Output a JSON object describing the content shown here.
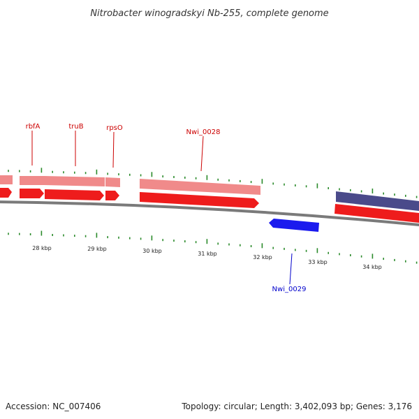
{
  "header": {
    "title": "Nitrobacter winogradskyi Nb-255, complete genome"
  },
  "footer": {
    "accession": "Accession: NC_007406",
    "summary": "Topology: circular; Length: 3,402,093 bp; Genes: 3,176"
  },
  "colors": {
    "backbone": "#7a7a7a",
    "cds_forward": "#ee1c1c",
    "gene_forward": "#f08a8a",
    "cds_reverse": "#1a1aee",
    "gene_reverse": "#4a4a8a",
    "ticks": "#2a8a2a",
    "label_forward": "#cc0000",
    "label_reverse": "#0000cc"
  },
  "gene_labels": [
    {
      "id": "rbfA",
      "text": "rbfA",
      "strand": "forward"
    },
    {
      "id": "truB",
      "text": "truB",
      "strand": "forward"
    },
    {
      "id": "rpsO",
      "text": "rpsO",
      "strand": "forward"
    },
    {
      "id": "nwi0028",
      "text": "Nwi_0028",
      "strand": "forward"
    },
    {
      "id": "nwi0029",
      "text": "Nwi_0029",
      "strand": "reverse"
    }
  ],
  "scale_labels": [
    "28 kbp",
    "29 kbp",
    "30 kbp",
    "31 kbp",
    "32 kbp",
    "33 kbp",
    "34 kbp"
  ]
}
